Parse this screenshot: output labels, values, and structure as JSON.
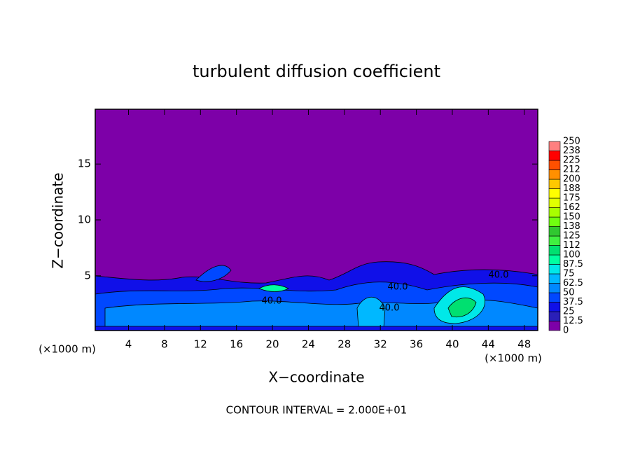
{
  "chart_data": {
    "type": "contour",
    "title": "turbulent diffusion coefficient",
    "x_label": "X−coordinate",
    "y_label": "Z−coordinate",
    "x_unit": "(×1000 m)",
    "y_unit": "(×1000 m)",
    "footer": "CONTOUR INTERVAL = 2.000E+01",
    "contour_labels": [
      "40.0",
      "40.0",
      "40.0",
      "40.0"
    ],
    "xlim": [
      0.3,
      49.5
    ],
    "xticks": [
      4,
      8,
      12,
      16,
      20,
      24,
      28,
      32,
      36,
      40,
      44,
      48
    ],
    "ylim": [
      0.1,
      19.9
    ],
    "yticks": [
      5,
      10,
      15
    ],
    "colorbar_levels": [
      0,
      12.5,
      25,
      37.5,
      50,
      62.5,
      75,
      87.5,
      100,
      112,
      125,
      138,
      150,
      162,
      175,
      188,
      200,
      212,
      225,
      238,
      250
    ],
    "colorbar_colors": [
      "#7d00a8",
      "#2a1fb8",
      "#1010e8",
      "#0048ff",
      "#0088ff",
      "#00b8ff",
      "#00e8e8",
      "#00ffa0",
      "#00e070",
      "#40f040",
      "#30c830",
      "#70ff10",
      "#a8ff00",
      "#e0ff00",
      "#ffff00",
      "#ffc800",
      "#ff9000",
      "#ff5000",
      "#ff0000",
      "#ff8080"
    ]
  }
}
